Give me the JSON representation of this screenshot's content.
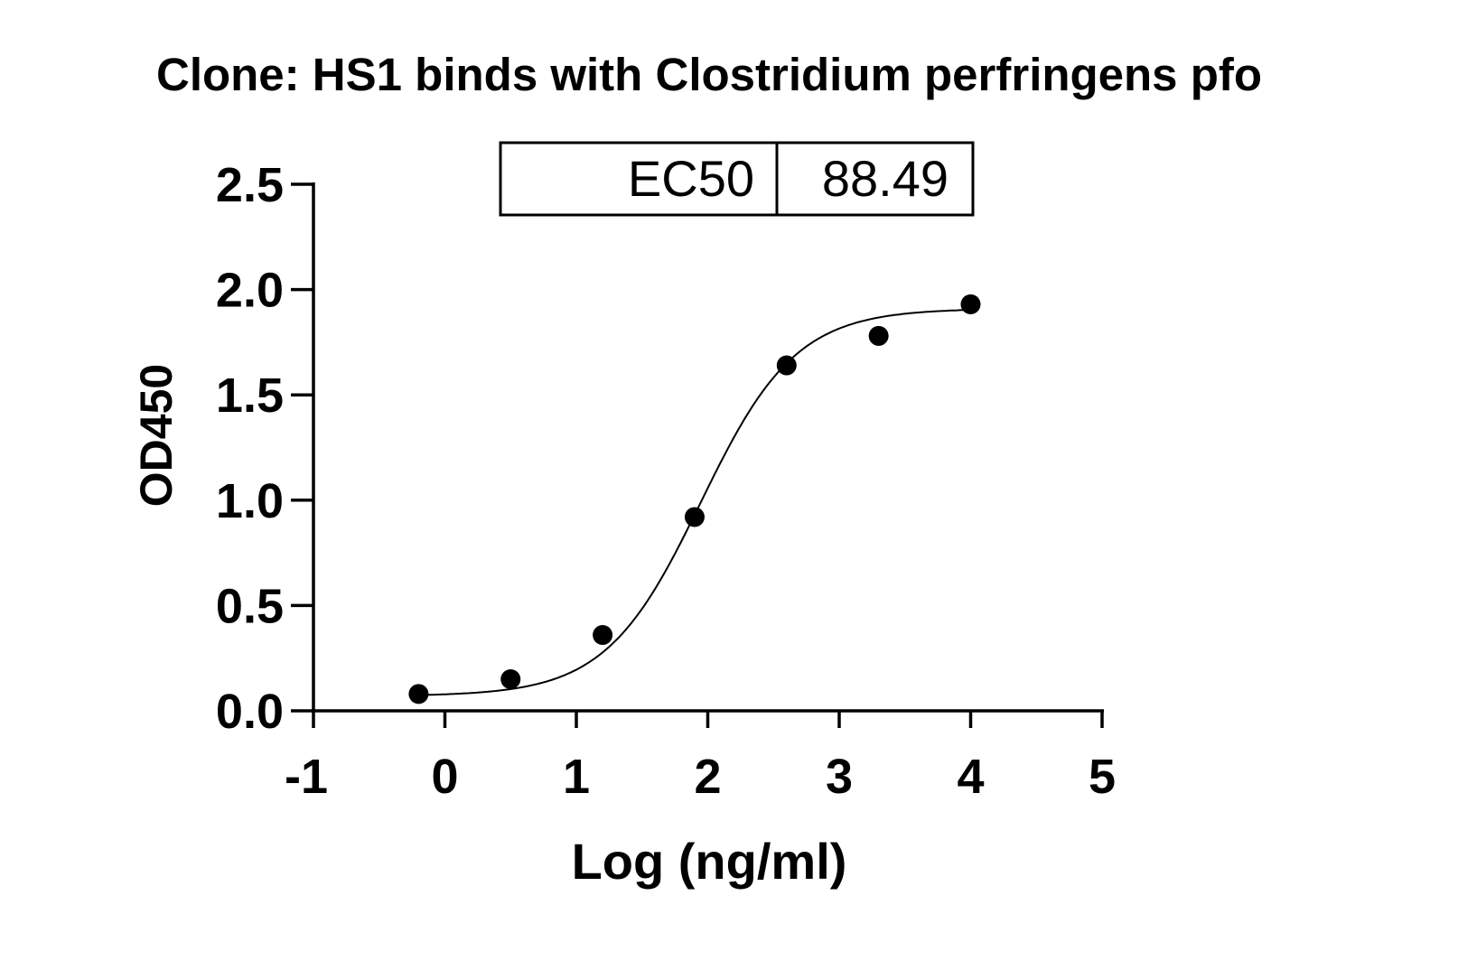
{
  "chart_data": {
    "type": "scatter",
    "title": "Clone: HS1 binds with Clostridium perfringens pfo",
    "xlabel": "Log (ng/ml)",
    "ylabel": "OD450",
    "xlim": [
      -1,
      5
    ],
    "ylim": [
      0,
      2.5
    ],
    "xticks": [
      "-1",
      "0",
      "1",
      "2",
      "3",
      "4",
      "5"
    ],
    "yticks": [
      "0.0",
      "0.5",
      "1.0",
      "1.5",
      "2.0",
      "2.5"
    ],
    "grid": false,
    "points": [
      {
        "x": -0.2,
        "y": 0.08
      },
      {
        "x": 0.5,
        "y": 0.15
      },
      {
        "x": 1.2,
        "y": 0.36
      },
      {
        "x": 1.9,
        "y": 0.92
      },
      {
        "x": 2.6,
        "y": 1.64
      },
      {
        "x": 3.3,
        "y": 1.78
      },
      {
        "x": 4.0,
        "y": 1.93
      }
    ],
    "fit": "sigmoidal dose-response curve",
    "table": {
      "label": "EC50",
      "value": "88.49"
    },
    "colors": {
      "points": "#000000",
      "line": "#000000"
    }
  }
}
